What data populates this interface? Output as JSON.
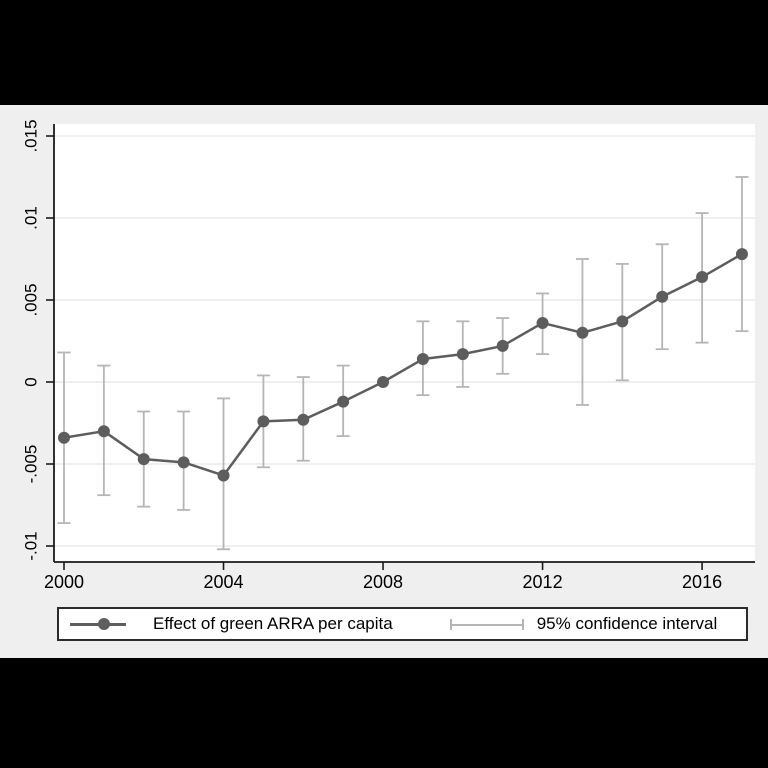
{
  "legend": {
    "series_label": "Effect of green ARRA per capita",
    "ci_label": "95% confidence interval"
  },
  "colors": {
    "letterbox": "#000000",
    "figure_bg": "#efefef",
    "plot_bg": "#ffffff",
    "grid": "#e5e5e5",
    "axis": "#1a1a1a",
    "text": "#000000",
    "line": "#5d5d5d",
    "marker": "#5d5d5d",
    "ci": "#b5b5b5"
  },
  "chart_data": {
    "type": "line",
    "title": "",
    "xlabel": "",
    "ylabel": "",
    "grid": "horizontal",
    "legend_position": "bottom",
    "xlim": [
      1999.75,
      2017.35
    ],
    "ylim": [
      -0.011,
      0.0157
    ],
    "x": [
      2000,
      2001,
      2002,
      2003,
      2004,
      2005,
      2006,
      2007,
      2008,
      2009,
      2010,
      2011,
      2012,
      2013,
      2014,
      2015,
      2016,
      2017
    ],
    "series": [
      {
        "name": "Effect of green ARRA per capita",
        "role": "estimate",
        "values": [
          -0.0034,
          -0.003,
          -0.0047,
          -0.0049,
          -0.0057,
          -0.0024,
          -0.0023,
          -0.0012,
          0.0,
          0.0014,
          0.0017,
          0.0022,
          0.0036,
          0.003,
          0.0037,
          0.0052,
          0.0064,
          0.0078
        ]
      },
      {
        "name": "95% confidence interval",
        "role": "ci_lower",
        "values": [
          -0.0086,
          -0.0069,
          -0.0076,
          -0.0078,
          -0.0102,
          -0.0052,
          -0.0048,
          -0.0033,
          0.0,
          -0.0008,
          -0.0003,
          0.0005,
          0.0017,
          -0.0014,
          0.0001,
          0.002,
          0.0024,
          0.0031
        ]
      },
      {
        "name": "95% confidence interval",
        "role": "ci_upper",
        "values": [
          0.0018,
          0.001,
          -0.0018,
          -0.0018,
          -0.001,
          0.0004,
          0.0003,
          0.001,
          0.0,
          0.0037,
          0.0037,
          0.0039,
          0.0054,
          0.0075,
          0.0072,
          0.0084,
          0.0103,
          0.0125
        ]
      }
    ],
    "x_ticks": [
      {
        "value": 2000,
        "label": "2000"
      },
      {
        "value": 2004,
        "label": "2004"
      },
      {
        "value": 2008,
        "label": "2008"
      },
      {
        "value": 2012,
        "label": "2012"
      },
      {
        "value": 2016,
        "label": "2016"
      }
    ],
    "y_ticks": [
      {
        "value": -0.01,
        "label": "-.01"
      },
      {
        "value": -0.005,
        "label": "-.005"
      },
      {
        "value": 0,
        "label": "0"
      },
      {
        "value": 0.005,
        "label": ".005"
      },
      {
        "value": 0.01,
        "label": ".01"
      },
      {
        "value": 0.015,
        "label": ".015"
      }
    ]
  }
}
